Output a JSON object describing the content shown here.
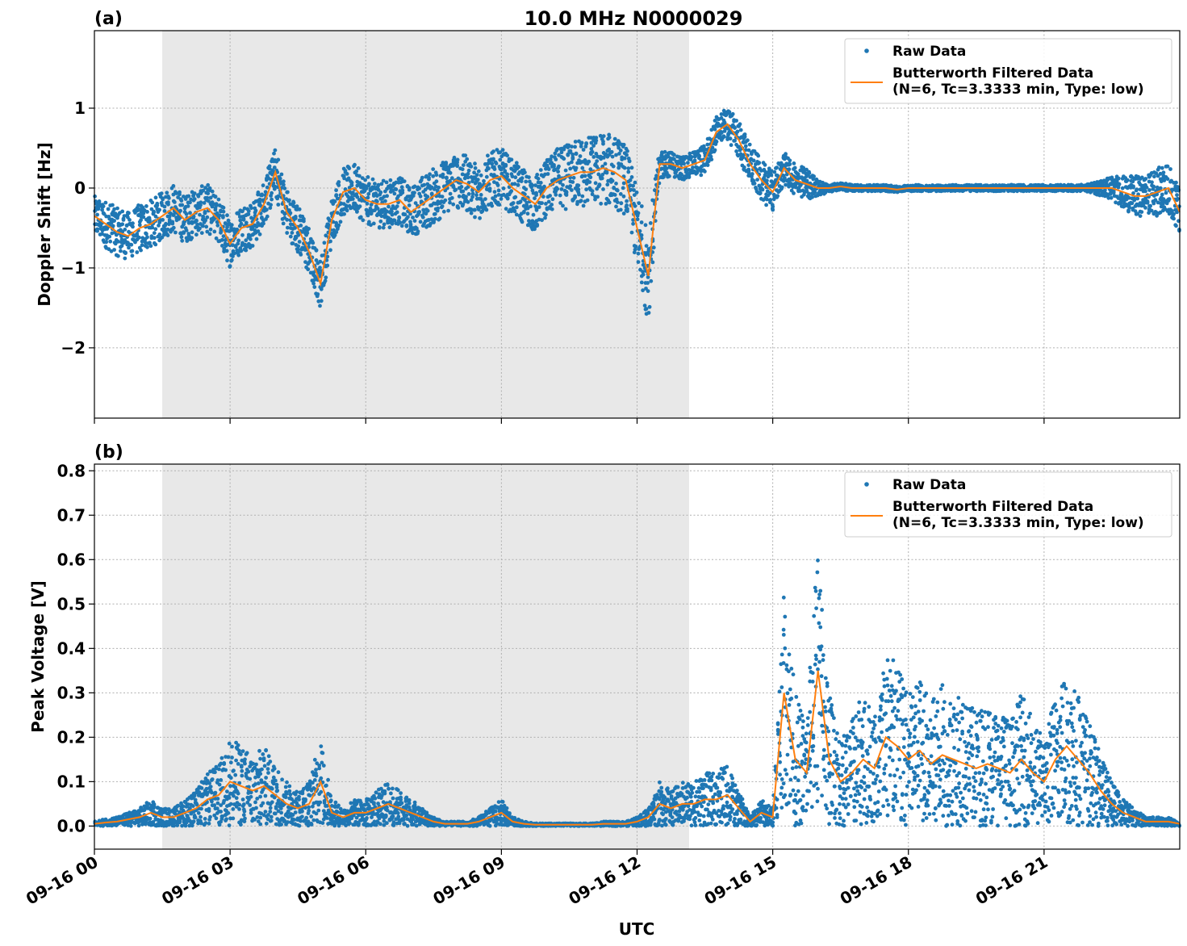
{
  "figure": {
    "title": "10.0 MHz N0000029",
    "xlabel": "UTC",
    "x_tick_labels": [
      "09-16 00",
      "09-16 03",
      "09-16 06",
      "09-16 09",
      "09-16 12",
      "09-16 15",
      "09-16 18",
      "09-16 21"
    ]
  },
  "colors": {
    "raw": "#1f77b4",
    "filtered": "#ff7f0e",
    "night_shading": "#e8e8e8"
  },
  "chart_data": [
    {
      "panel_label": "(a)",
      "type": "line",
      "ylabel": "Doppler Shift [Hz]",
      "xlim_hours": [
        0,
        24
      ],
      "ylim": [
        -2.88,
        1.97
      ],
      "y_ticks": [
        -2,
        -1,
        0,
        1
      ],
      "y_tick_labels": [
        "−2",
        "−1",
        "0",
        "1"
      ],
      "grid": true,
      "legend_position": "top-right",
      "shaded_interval_hours": [
        1.5,
        13.15
      ],
      "series": [
        {
          "name": "Raw Data",
          "style": "dots",
          "x_hours": [
            0.0,
            0.25,
            0.5,
            0.75,
            1.0,
            1.25,
            1.5,
            1.75,
            2.0,
            2.25,
            2.5,
            2.75,
            3.0,
            3.25,
            3.5,
            3.75,
            4.0,
            4.25,
            4.5,
            4.75,
            5.0,
            5.25,
            5.5,
            5.75,
            6.0,
            6.25,
            6.5,
            6.75,
            7.0,
            7.25,
            7.5,
            7.75,
            8.0,
            8.25,
            8.5,
            8.75,
            9.0,
            9.25,
            9.5,
            9.75,
            10.0,
            10.25,
            10.5,
            10.75,
            11.0,
            11.25,
            11.5,
            11.75,
            12.0,
            12.25,
            12.5,
            12.75,
            13.0,
            13.25,
            13.5,
            13.75,
            14.0,
            14.25,
            14.5,
            14.75,
            15.0,
            15.25,
            15.5,
            15.75,
            16.0,
            16.25,
            16.5,
            16.75,
            17.0,
            17.25,
            17.5,
            17.75,
            18.0,
            18.25,
            18.5,
            18.75,
            19.0,
            19.25,
            19.5,
            19.75,
            20.0,
            20.25,
            20.5,
            20.75,
            21.0,
            21.25,
            21.5,
            21.75,
            22.0,
            22.25,
            22.5,
            22.75,
            23.0,
            23.25,
            23.5,
            23.75,
            24.0
          ],
          "y_center": [
            -0.35,
            -0.45,
            -0.55,
            -0.6,
            -0.5,
            -0.45,
            -0.35,
            -0.25,
            -0.4,
            -0.3,
            -0.25,
            -0.4,
            -0.7,
            -0.5,
            -0.45,
            -0.2,
            0.2,
            -0.3,
            -0.5,
            -0.8,
            -1.2,
            -0.4,
            -0.05,
            0.0,
            -0.15,
            -0.2,
            -0.2,
            -0.15,
            -0.3,
            -0.2,
            -0.1,
            0.0,
            0.1,
            0.05,
            -0.05,
            0.1,
            0.15,
            0.0,
            -0.1,
            -0.2,
            0.0,
            0.1,
            0.15,
            0.2,
            0.2,
            0.25,
            0.2,
            0.1,
            -0.5,
            -1.1,
            0.3,
            0.3,
            0.25,
            0.3,
            0.35,
            0.7,
            0.8,
            0.6,
            0.3,
            0.1,
            -0.05,
            0.25,
            0.1,
            0.05,
            0.0,
            0.0,
            0.02,
            0.0,
            0.0,
            0.0,
            0.0,
            -0.02,
            0.0,
            0.0,
            0.0,
            0.0,
            0.0,
            0.0,
            0.0,
            0.0,
            0.0,
            0.0,
            0.0,
            0.0,
            0.0,
            0.0,
            0.0,
            0.0,
            0.0,
            0.0,
            0.0,
            -0.05,
            -0.1,
            -0.1,
            -0.05,
            0.0,
            -0.3
          ],
          "y_spread": [
            0.25,
            0.3,
            0.3,
            0.3,
            0.3,
            0.3,
            0.3,
            0.3,
            0.3,
            0.3,
            0.3,
            0.3,
            0.3,
            0.3,
            0.3,
            0.3,
            0.3,
            0.3,
            0.3,
            0.3,
            0.3,
            0.3,
            0.3,
            0.3,
            0.3,
            0.3,
            0.3,
            0.3,
            0.3,
            0.35,
            0.35,
            0.35,
            0.35,
            0.35,
            0.35,
            0.35,
            0.35,
            0.35,
            0.35,
            0.35,
            0.35,
            0.4,
            0.4,
            0.45,
            0.45,
            0.45,
            0.45,
            0.45,
            0.5,
            0.6,
            0.2,
            0.15,
            0.15,
            0.15,
            0.2,
            0.2,
            0.2,
            0.25,
            0.25,
            0.25,
            0.25,
            0.2,
            0.2,
            0.2,
            0.1,
            0.05,
            0.05,
            0.04,
            0.04,
            0.04,
            0.04,
            0.04,
            0.04,
            0.04,
            0.04,
            0.04,
            0.04,
            0.04,
            0.04,
            0.04,
            0.04,
            0.04,
            0.04,
            0.04,
            0.04,
            0.04,
            0.04,
            0.04,
            0.05,
            0.1,
            0.15,
            0.2,
            0.25,
            0.25,
            0.3,
            0.3,
            0.3
          ]
        },
        {
          "name": "Butterworth Filtered Data\n(N=6, Tc=3.3333 min, Type: low)",
          "style": "line",
          "x_hours": [
            0.0,
            0.25,
            0.5,
            0.75,
            1.0,
            1.25,
            1.5,
            1.75,
            2.0,
            2.25,
            2.5,
            2.75,
            3.0,
            3.25,
            3.5,
            3.75,
            4.0,
            4.25,
            4.5,
            4.75,
            5.0,
            5.25,
            5.5,
            5.75,
            6.0,
            6.25,
            6.5,
            6.75,
            7.0,
            7.25,
            7.5,
            7.75,
            8.0,
            8.25,
            8.5,
            8.75,
            9.0,
            9.25,
            9.5,
            9.75,
            10.0,
            10.25,
            10.5,
            10.75,
            11.0,
            11.25,
            11.5,
            11.75,
            12.0,
            12.25,
            12.5,
            12.75,
            13.0,
            13.25,
            13.5,
            13.75,
            14.0,
            14.25,
            14.5,
            14.75,
            15.0,
            15.25,
            15.5,
            15.75,
            16.0,
            16.25,
            16.5,
            16.75,
            17.0,
            17.25,
            17.5,
            17.75,
            18.0,
            18.25,
            18.5,
            18.75,
            19.0,
            19.25,
            19.5,
            19.75,
            20.0,
            20.25,
            20.5,
            20.75,
            21.0,
            21.25,
            21.5,
            21.75,
            22.0,
            22.25,
            22.5,
            22.75,
            23.0,
            23.25,
            23.5,
            23.75,
            24.0
          ],
          "y": [
            -0.35,
            -0.45,
            -0.55,
            -0.6,
            -0.5,
            -0.45,
            -0.35,
            -0.25,
            -0.4,
            -0.3,
            -0.25,
            -0.4,
            -0.7,
            -0.5,
            -0.45,
            -0.2,
            0.2,
            -0.3,
            -0.5,
            -0.8,
            -1.2,
            -0.4,
            -0.05,
            0.0,
            -0.15,
            -0.2,
            -0.2,
            -0.15,
            -0.3,
            -0.2,
            -0.1,
            0.0,
            0.1,
            0.05,
            -0.05,
            0.1,
            0.15,
            0.0,
            -0.1,
            -0.2,
            0.0,
            0.1,
            0.15,
            0.2,
            0.2,
            0.25,
            0.2,
            0.1,
            -0.5,
            -1.1,
            0.3,
            0.3,
            0.25,
            0.3,
            0.35,
            0.7,
            0.8,
            0.6,
            0.3,
            0.1,
            -0.05,
            0.25,
            0.1,
            0.05,
            0.0,
            0.0,
            0.02,
            0.0,
            0.0,
            0.0,
            0.0,
            -0.02,
            0.0,
            0.0,
            0.0,
            0.0,
            0.0,
            0.0,
            0.0,
            0.0,
            0.0,
            0.0,
            0.0,
            0.0,
            0.0,
            0.0,
            0.0,
            0.0,
            0.0,
            0.0,
            0.0,
            -0.05,
            -0.1,
            -0.1,
            -0.05,
            0.0,
            -0.3
          ]
        }
      ]
    },
    {
      "panel_label": "(b)",
      "type": "line",
      "ylabel": "Peak Voltage [V]",
      "xlim_hours": [
        0,
        24
      ],
      "ylim": [
        -0.052,
        0.815
      ],
      "y_ticks": [
        0.0,
        0.1,
        0.2,
        0.3,
        0.4,
        0.5,
        0.6,
        0.7,
        0.8
      ],
      "y_tick_labels": [
        "0.0",
        "0.1",
        "0.2",
        "0.3",
        "0.4",
        "0.5",
        "0.6",
        "0.7",
        "0.8"
      ],
      "grid": true,
      "legend_position": "top-right",
      "shaded_interval_hours": [
        1.5,
        13.15
      ],
      "series": [
        {
          "name": "Raw Data",
          "style": "dots",
          "x_hours": [
            0.0,
            0.25,
            0.5,
            0.75,
            1.0,
            1.25,
            1.5,
            1.75,
            2.0,
            2.25,
            2.5,
            2.75,
            3.0,
            3.25,
            3.5,
            3.75,
            4.0,
            4.25,
            4.5,
            4.75,
            5.0,
            5.25,
            5.5,
            5.75,
            6.0,
            6.25,
            6.5,
            6.75,
            7.0,
            7.25,
            7.5,
            7.75,
            8.0,
            8.25,
            8.5,
            8.75,
            9.0,
            9.25,
            9.5,
            9.75,
            10.0,
            10.25,
            10.5,
            10.75,
            11.0,
            11.25,
            11.5,
            11.75,
            12.0,
            12.25,
            12.5,
            12.75,
            13.0,
            13.25,
            13.5,
            13.75,
            14.0,
            14.25,
            14.5,
            14.75,
            15.0,
            15.25,
            15.5,
            15.75,
            16.0,
            16.25,
            16.5,
            16.75,
            17.0,
            17.25,
            17.5,
            17.75,
            18.0,
            18.25,
            18.5,
            18.75,
            19.0,
            19.25,
            19.5,
            19.75,
            20.0,
            20.25,
            20.5,
            20.75,
            21.0,
            21.25,
            21.5,
            21.75,
            22.0,
            22.25,
            22.5,
            22.75,
            23.0,
            23.25,
            23.5,
            23.75,
            24.0
          ],
          "y_center": [
            0.005,
            0.008,
            0.01,
            0.015,
            0.02,
            0.03,
            0.02,
            0.02,
            0.03,
            0.04,
            0.06,
            0.07,
            0.1,
            0.09,
            0.08,
            0.09,
            0.07,
            0.05,
            0.04,
            0.05,
            0.1,
            0.03,
            0.02,
            0.03,
            0.03,
            0.04,
            0.05,
            0.04,
            0.03,
            0.02,
            0.01,
            0.005,
            0.005,
            0.005,
            0.01,
            0.02,
            0.03,
            0.01,
            0.005,
            0.003,
            0.003,
            0.003,
            0.003,
            0.003,
            0.003,
            0.005,
            0.005,
            0.005,
            0.01,
            0.02,
            0.05,
            0.04,
            0.05,
            0.05,
            0.06,
            0.06,
            0.07,
            0.04,
            0.01,
            0.03,
            0.02,
            0.3,
            0.15,
            0.12,
            0.35,
            0.15,
            0.1,
            0.12,
            0.15,
            0.13,
            0.2,
            0.18,
            0.15,
            0.17,
            0.14,
            0.16,
            0.15,
            0.14,
            0.13,
            0.14,
            0.13,
            0.12,
            0.15,
            0.12,
            0.1,
            0.15,
            0.18,
            0.15,
            0.12,
            0.08,
            0.05,
            0.03,
            0.02,
            0.01,
            0.01,
            0.01,
            0.005
          ],
          "y_spread": [
            0.005,
            0.008,
            0.01,
            0.015,
            0.02,
            0.03,
            0.02,
            0.02,
            0.03,
            0.04,
            0.06,
            0.07,
            0.1,
            0.09,
            0.08,
            0.09,
            0.07,
            0.05,
            0.04,
            0.05,
            0.1,
            0.03,
            0.02,
            0.03,
            0.03,
            0.04,
            0.05,
            0.04,
            0.03,
            0.02,
            0.01,
            0.005,
            0.005,
            0.005,
            0.01,
            0.02,
            0.03,
            0.01,
            0.005,
            0.003,
            0.003,
            0.003,
            0.003,
            0.003,
            0.003,
            0.005,
            0.005,
            0.005,
            0.01,
            0.02,
            0.05,
            0.04,
            0.05,
            0.05,
            0.06,
            0.06,
            0.07,
            0.04,
            0.01,
            0.03,
            0.02,
            0.25,
            0.15,
            0.12,
            0.3,
            0.15,
            0.1,
            0.12,
            0.15,
            0.13,
            0.2,
            0.18,
            0.15,
            0.17,
            0.14,
            0.16,
            0.15,
            0.14,
            0.13,
            0.14,
            0.13,
            0.12,
            0.15,
            0.12,
            0.1,
            0.15,
            0.18,
            0.15,
            0.12,
            0.08,
            0.05,
            0.03,
            0.02,
            0.01,
            0.01,
            0.01,
            0.005
          ]
        },
        {
          "name": "Butterworth Filtered Data\n(N=6, Tc=3.3333 min, Type: low)",
          "style": "line",
          "x_hours": [
            0.0,
            0.25,
            0.5,
            0.75,
            1.0,
            1.25,
            1.5,
            1.75,
            2.0,
            2.25,
            2.5,
            2.75,
            3.0,
            3.25,
            3.5,
            3.75,
            4.0,
            4.25,
            4.5,
            4.75,
            5.0,
            5.25,
            5.5,
            5.75,
            6.0,
            6.25,
            6.5,
            6.75,
            7.0,
            7.25,
            7.5,
            7.75,
            8.0,
            8.25,
            8.5,
            8.75,
            9.0,
            9.25,
            9.5,
            9.75,
            10.0,
            10.25,
            10.5,
            10.75,
            11.0,
            11.25,
            11.5,
            11.75,
            12.0,
            12.25,
            12.5,
            12.75,
            13.0,
            13.25,
            13.5,
            13.75,
            14.0,
            14.25,
            14.5,
            14.75,
            15.0,
            15.25,
            15.5,
            15.75,
            16.0,
            16.25,
            16.5,
            16.75,
            17.0,
            17.25,
            17.5,
            17.75,
            18.0,
            18.25,
            18.5,
            18.75,
            19.0,
            19.25,
            19.5,
            19.75,
            20.0,
            20.25,
            20.5,
            20.75,
            21.0,
            21.25,
            21.5,
            21.75,
            22.0,
            22.25,
            22.5,
            22.75,
            23.0,
            23.25,
            23.5,
            23.75,
            24.0
          ],
          "y": [
            0.005,
            0.008,
            0.01,
            0.015,
            0.02,
            0.03,
            0.02,
            0.02,
            0.03,
            0.04,
            0.06,
            0.07,
            0.1,
            0.09,
            0.08,
            0.09,
            0.07,
            0.05,
            0.04,
            0.05,
            0.1,
            0.03,
            0.02,
            0.03,
            0.03,
            0.04,
            0.05,
            0.04,
            0.03,
            0.02,
            0.01,
            0.005,
            0.005,
            0.005,
            0.01,
            0.02,
            0.03,
            0.01,
            0.005,
            0.003,
            0.003,
            0.003,
            0.003,
            0.003,
            0.003,
            0.005,
            0.005,
            0.005,
            0.01,
            0.02,
            0.05,
            0.04,
            0.05,
            0.05,
            0.06,
            0.06,
            0.07,
            0.04,
            0.01,
            0.03,
            0.02,
            0.3,
            0.15,
            0.12,
            0.35,
            0.15,
            0.1,
            0.12,
            0.15,
            0.13,
            0.2,
            0.18,
            0.15,
            0.17,
            0.14,
            0.16,
            0.15,
            0.14,
            0.13,
            0.14,
            0.13,
            0.12,
            0.15,
            0.12,
            0.1,
            0.15,
            0.18,
            0.15,
            0.12,
            0.08,
            0.05,
            0.03,
            0.02,
            0.01,
            0.01,
            0.01,
            0.005
          ]
        }
      ]
    }
  ]
}
